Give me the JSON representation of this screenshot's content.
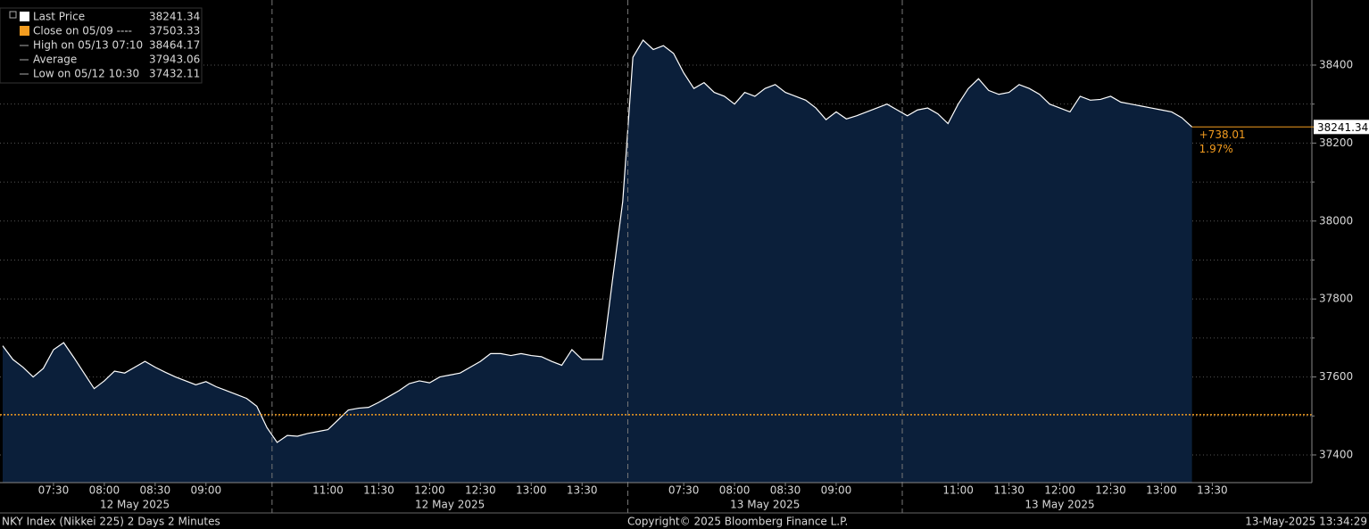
{
  "chart_data": {
    "type": "line",
    "area": true,
    "grid": true,
    "series": [
      {
        "name": "Last Price",
        "color": "#ffffff",
        "fill": "#0b1f3a",
        "values": [
          37680,
          37645,
          37625,
          37600,
          37622,
          37670,
          37688,
          37650,
          37610,
          37570,
          37590,
          37615,
          37610,
          37625,
          37640,
          37625,
          37612,
          37600,
          37590,
          37580,
          37588,
          37575,
          37565,
          37555,
          37545,
          37525,
          37470,
          37432.11,
          37450,
          37448,
          37455,
          37460,
          37465,
          37490,
          37515,
          37520,
          37522,
          37535,
          37550,
          37565,
          37583,
          37590,
          37585,
          37600,
          37605,
          37610,
          37625,
          37640,
          37660,
          37660,
          37655,
          37660,
          37655,
          37652,
          37640,
          37630,
          37670,
          37645,
          37645,
          37645,
          37850,
          38050,
          38420,
          38464.17,
          38440,
          38450,
          38430,
          38380,
          38340,
          38355,
          38330,
          38320,
          38300,
          38330,
          38320,
          38340,
          38350,
          38330,
          38320,
          38310,
          38290,
          38260,
          38280,
          38262,
          38270,
          38280,
          38290,
          38300,
          38285,
          38270,
          38285,
          38290,
          38275,
          38250,
          38300,
          38340,
          38365,
          38335,
          38325,
          38330,
          38350,
          38340,
          38325,
          38300,
          38290,
          38280,
          38320,
          38310,
          38312,
          38320,
          38305,
          38300,
          38295,
          38290,
          38285,
          38280,
          38265,
          38241.34,
          null,
          null
        ]
      }
    ],
    "categories": [
      null,
      null,
      null,
      null,
      null,
      "07:30",
      null,
      null,
      null,
      null,
      "08:00",
      null,
      null,
      null,
      null,
      "08:30",
      null,
      null,
      null,
      null,
      "09:00",
      null,
      null,
      null,
      null,
      null,
      null,
      null,
      null,
      null,
      null,
      null,
      "11:00",
      null,
      null,
      null,
      null,
      "11:30",
      null,
      null,
      null,
      null,
      "12:00",
      null,
      null,
      null,
      null,
      "12:30",
      null,
      null,
      null,
      null,
      "13:00",
      null,
      null,
      null,
      null,
      "13:30",
      null,
      null,
      null,
      null,
      null,
      null,
      null,
      null,
      null,
      "07:30",
      null,
      null,
      null,
      null,
      "08:00",
      null,
      null,
      null,
      null,
      "08:30",
      null,
      null,
      null,
      null,
      "09:00",
      null,
      null,
      null,
      null,
      null,
      null,
      null,
      null,
      null,
      null,
      null,
      "11:00",
      null,
      null,
      null,
      null,
      "11:30",
      null,
      null,
      null,
      null,
      "12:00",
      null,
      null,
      null,
      null,
      "12:30",
      null,
      null,
      null,
      null,
      "13:00",
      null,
      null,
      null,
      null,
      "13:30"
    ],
    "x_groups": [
      {
        "label": "12 May 2025",
        "start": 0,
        "end": 26
      },
      {
        "label": "12 May 2025",
        "start": 27,
        "end": 61
      },
      {
        "label": "13 May 2025",
        "start": 62,
        "end": 88
      },
      {
        "label": "13 May 2025",
        "start": 89,
        "end": 119
      }
    ],
    "ylim": [
      37329,
      38567
    ],
    "yticks": [
      37400,
      37600,
      37800,
      38000,
      38200,
      38400
    ],
    "minor_yticks": [
      37500,
      37700,
      37900,
      38100,
      38300
    ],
    "legend": [
      {
        "label": "Last Price",
        "value": 38241.34,
        "color": "#ffffff"
      },
      {
        "label": "Close on 05/09 ----",
        "value": 37503.33,
        "color": "#f39c1f"
      },
      {
        "label": "High on 05/13 07:10",
        "value": 38464.17
      },
      {
        "label": "Average",
        "value": 37943.06
      },
      {
        "label": "Low on 05/12 10:30",
        "value": 37432.11
      }
    ],
    "change": {
      "value": 738.01,
      "label": "+738.01"
    },
    "change_pct": {
      "value": 1.97,
      "label": "1.97%"
    },
    "footer": {
      "left": "NKY Index (Nikkei 225) 2 Days 2 Minutes",
      "center": "Copyright© 2025 Bloomberg Finance L.P.",
      "right": "13-May-2025 13:34:29"
    }
  }
}
